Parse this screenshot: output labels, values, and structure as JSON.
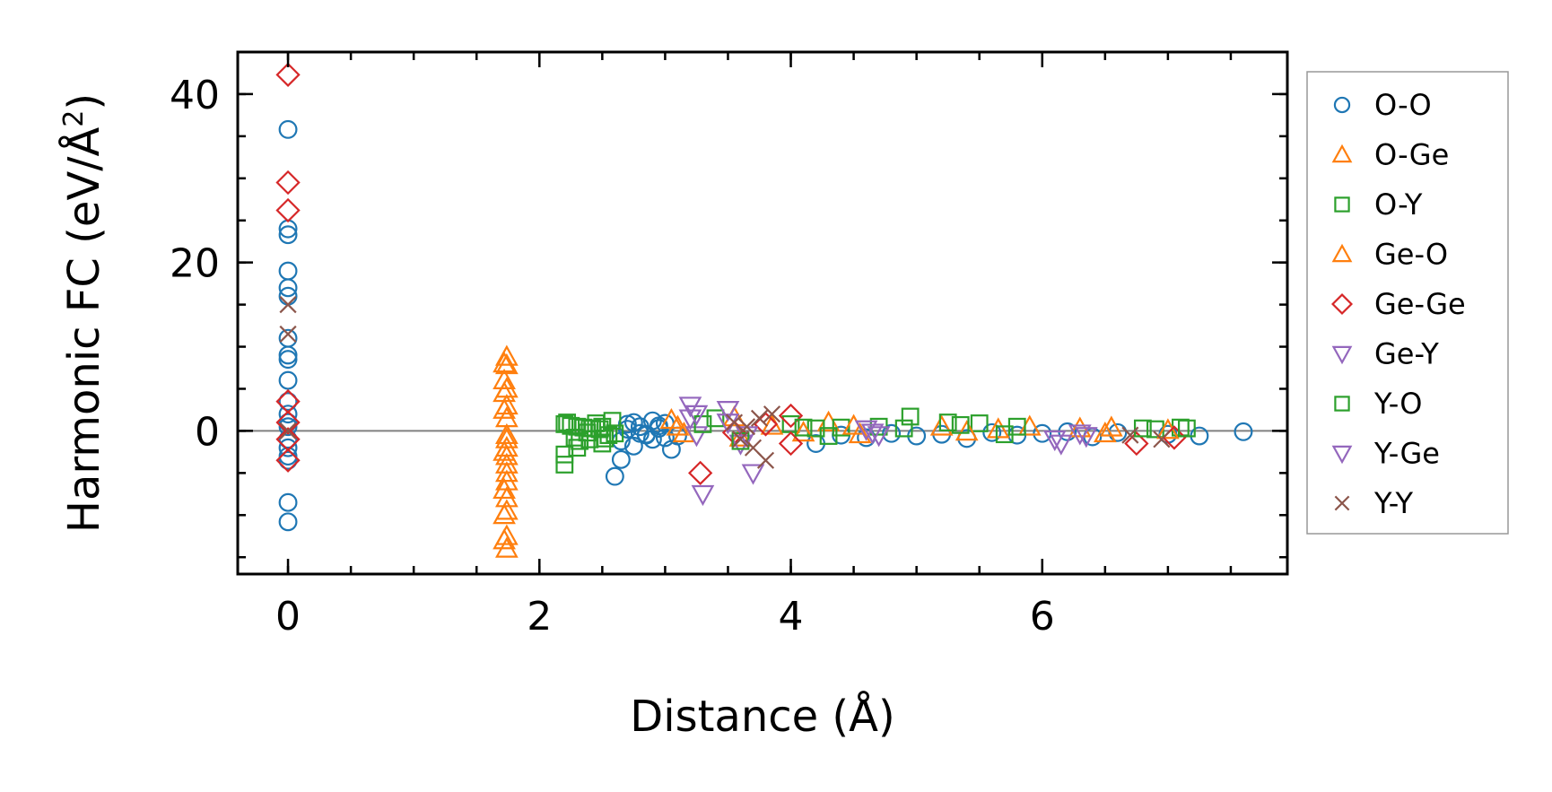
{
  "chart_data": {
    "type": "scatter",
    "xlabel": "Distance (Å)",
    "ylabel": "Harmonic FC (eV/Å",
    "ylabel_superscript": "2",
    "ylabel_close": ")",
    "xlim": [
      -0.4,
      7.95
    ],
    "ylim": [
      -17,
      45
    ],
    "xticks": [
      0,
      2,
      4,
      6
    ],
    "yticks": [
      0,
      20,
      40
    ],
    "xtick_labels": [
      "0",
      "2",
      "4",
      "6"
    ],
    "ytick_labels": [
      "0",
      "20",
      "40"
    ],
    "x_minor_step": 0.5,
    "y_minor_step": 5,
    "zero_line": true,
    "grid": false,
    "legend_position": "outside-right",
    "series": [
      {
        "name": "O-O",
        "marker": "circle",
        "color": "#1f77b4",
        "x": [
          0,
          0,
          0,
          0,
          0,
          0,
          0,
          0,
          0,
          0,
          0,
          0,
          0,
          0,
          0,
          0,
          0,
          0,
          0,
          0,
          2.6,
          2.65,
          2.7,
          2.75,
          2.8,
          2.85,
          2.9,
          2.95,
          3.0,
          2.65,
          2.75,
          2.85,
          2.95,
          3.05,
          2.7,
          2.8,
          2.9,
          3.0,
          3.1,
          4.2,
          4.4,
          4.6,
          4.8,
          5.0,
          5.2,
          5.4,
          5.6,
          5.8,
          6.0,
          6.2,
          6.4,
          6.6,
          7.0,
          7.25,
          7.6
        ],
        "y": [
          35.8,
          24,
          23.3,
          19,
          17,
          16,
          11,
          9,
          8.5,
          6,
          3.5,
          2,
          1,
          0.5,
          -1,
          -2,
          -3,
          -3.5,
          -8.5,
          -10.8,
          -5.4,
          -3.4,
          0.8,
          1,
          0.5,
          -0.5,
          1.2,
          0.6,
          -0.8,
          -1.2,
          -1.8,
          -0.4,
          0.3,
          -2.2,
          0.2,
          -0.3,
          -1,
          0.9,
          -0.6,
          -1.5,
          -0.5,
          -0.8,
          -0.3,
          -0.6,
          -0.4,
          -0.9,
          -0.2,
          -0.5,
          -0.3,
          -0.1,
          -0.7,
          -0.2,
          -0.4,
          -0.6,
          -0.1
        ]
      },
      {
        "name": "O-Ge",
        "marker": "triangle-up",
        "color": "#ff7f0e",
        "x": [
          1.74,
          1.74,
          1.74,
          1.74,
          1.74,
          1.74,
          1.74,
          1.74,
          1.74,
          1.74,
          1.74,
          1.74,
          1.74,
          1.74,
          1.74,
          1.74,
          3.05,
          3.15,
          3.55,
          3.85,
          4.3,
          4.55,
          5.2,
          5.65,
          5.9,
          6.3,
          6.55
        ],
        "y": [
          8.8,
          7.8,
          5,
          3,
          1.5,
          -0.5,
          -1,
          -2,
          -3,
          -4,
          -5,
          -6,
          -8,
          -9.5,
          -12.5,
          -14,
          1.3,
          -0.3,
          1.6,
          0.6,
          1,
          -0.4,
          0.5,
          0.2,
          0.5,
          0.3,
          0.4
        ]
      },
      {
        "name": "O-Y",
        "marker": "square",
        "color": "#2ca02c",
        "x": [
          2.2,
          2.25,
          2.3,
          2.35,
          2.4,
          2.45,
          2.5,
          2.55,
          2.2,
          2.3,
          2.4,
          2.5,
          2.2,
          2.28,
          2.38,
          2.48,
          2.58,
          3.4,
          4.0,
          4.2,
          4.4,
          4.7,
          4.95,
          5.25,
          5.5,
          5.8,
          6.9,
          7.1
        ],
        "y": [
          0.8,
          0.6,
          0.5,
          0.4,
          0.3,
          0.9,
          0.5,
          -0.5,
          -4,
          -2,
          -1,
          -1.5,
          -2.8,
          -0.8,
          -0.2,
          0.2,
          1.2,
          1.5,
          0.8,
          0.3,
          0.4,
          0.5,
          1.7,
          1,
          0.9,
          0.5,
          0.2,
          0.4
        ]
      },
      {
        "name": "Ge-O",
        "marker": "triangle-up",
        "color": "#ff7f0e",
        "x": [
          1.72,
          1.72,
          1.72,
          1.72,
          1.72,
          1.72,
          1.72,
          1.72,
          3.1,
          3.6,
          4.1,
          4.5,
          5.4,
          6.5,
          7.0
        ],
        "y": [
          8,
          6,
          4.5,
          2.5,
          -2.5,
          -7,
          -10,
          -13,
          0.5,
          -0.8,
          -0.2,
          0.6,
          -0.1,
          -0.3,
          0.1
        ]
      },
      {
        "name": "Ge-Ge",
        "marker": "diamond",
        "color": "#d62728",
        "x": [
          0,
          0,
          0,
          0,
          0,
          0,
          0,
          3.28,
          3.55,
          3.8,
          4.0,
          4.0,
          6.75,
          7.05
        ],
        "y": [
          42.3,
          29.5,
          26.2,
          3.5,
          1,
          -1,
          -3.5,
          -5,
          -0.2,
          0.8,
          1.8,
          -1.5,
          -1.5,
          -0.8
        ]
      },
      {
        "name": "Ge-Y",
        "marker": "triangle-down",
        "color": "#9467bd",
        "x": [
          3.2,
          3.2,
          3.25,
          3.3,
          3.5,
          3.6,
          3.7,
          4.6,
          4.7,
          6.15,
          6.3
        ],
        "y": [
          3,
          1.5,
          -0.5,
          -7.5,
          2.5,
          -1.5,
          -5,
          0.2,
          -0.5,
          -1.5,
          -0.3
        ]
      },
      {
        "name": "Y-O",
        "marker": "square",
        "color": "#2ca02c",
        "x": [
          2.22,
          2.32,
          2.42,
          2.52,
          2.6,
          3.3,
          3.6,
          4.1,
          4.3,
          4.9,
          5.35,
          5.7,
          6.8,
          7.15
        ],
        "y": [
          1,
          -1.2,
          0.3,
          -0.9,
          -0.3,
          0.8,
          -1.2,
          0.4,
          -0.6,
          0.3,
          0.7,
          -0.4,
          0.3,
          0.3
        ]
      },
      {
        "name": "Y-Ge",
        "marker": "triangle-down",
        "color": "#9467bd",
        "x": [
          3.25,
          3.5,
          3.65,
          4.65,
          6.1,
          6.35
        ],
        "y": [
          2,
          1,
          -0.5,
          -0.2,
          -1,
          -0.6
        ]
      },
      {
        "name": "Y-Y",
        "marker": "x",
        "color": "#8c564b",
        "x": [
          0,
          0,
          0,
          3.55,
          3.6,
          3.65,
          3.7,
          3.75,
          3.8,
          3.85,
          6.7,
          6.95
        ],
        "y": [
          15,
          11.5,
          0,
          1,
          -1,
          0.5,
          -2,
          1.5,
          -3.5,
          2,
          -0.5,
          -1
        ]
      }
    ]
  }
}
